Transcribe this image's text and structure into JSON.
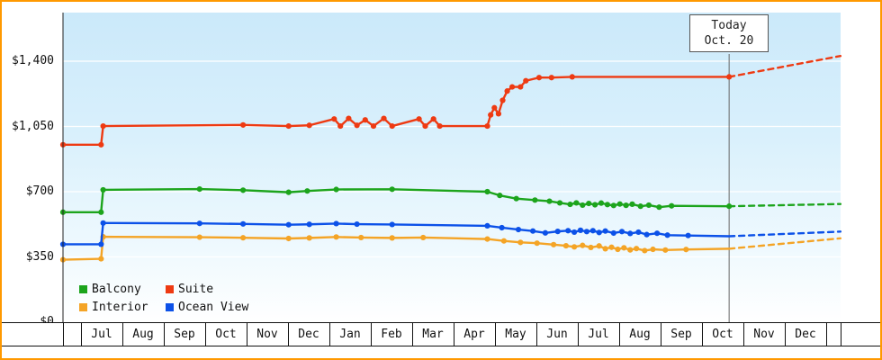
{
  "frame": {
    "border_color": "#ff9900",
    "background": "#ffffff"
  },
  "legend": [
    {
      "label": "Balcony",
      "color": "#1ca41c"
    },
    {
      "label": "Suite",
      "color": "#ee3a12"
    },
    {
      "label": "Interior",
      "color": "#f4a426"
    },
    {
      "label": "Ocean View",
      "color": "#0c51e8"
    }
  ],
  "chart_data": {
    "type": "line",
    "title": "",
    "xlabel": "",
    "ylabel": "",
    "grid": true,
    "legend_position": "bottom-left",
    "y_axis": {
      "max": 1400,
      "ticks": [
        {
          "label": "$0",
          "value": 0
        },
        {
          "label": "$350",
          "value": 350
        },
        {
          "label": "$700",
          "value": 700
        },
        {
          "label": "$1,050",
          "value": 1050
        },
        {
          "label": "$1,400",
          "value": 1400
        }
      ]
    },
    "x_axis": {
      "month_labels": [
        "Jul",
        "Aug",
        "Sep",
        "Oct",
        "Nov",
        "Dec",
        "Jan",
        "Feb",
        "Mar",
        "Apr",
        "May",
        "Jun",
        "Jul",
        "Aug",
        "Sep",
        "Oct",
        "Nov",
        "Dec"
      ]
    },
    "today": {
      "line1": "Today",
      "line2": "Oct. 20",
      "t": 16.09
    },
    "series": [
      {
        "name": "Balcony",
        "color": "#1ca41c",
        "points": [
          [
            0,
            590
          ],
          [
            0.92,
            590
          ],
          [
            0.97,
            710
          ],
          [
            3.3,
            714
          ],
          [
            4.35,
            708
          ],
          [
            5.45,
            697
          ],
          [
            5.9,
            704
          ],
          [
            6.6,
            712
          ],
          [
            7.95,
            713
          ],
          [
            10.25,
            700
          ],
          [
            10.55,
            680
          ],
          [
            10.95,
            663
          ],
          [
            11.4,
            655
          ],
          [
            11.75,
            649
          ],
          [
            12.0,
            640
          ],
          [
            12.25,
            632
          ],
          [
            12.4,
            640
          ],
          [
            12.55,
            628
          ],
          [
            12.7,
            637
          ],
          [
            12.85,
            630
          ],
          [
            13.0,
            639
          ],
          [
            13.15,
            631
          ],
          [
            13.3,
            626
          ],
          [
            13.45,
            634
          ],
          [
            13.6,
            627
          ],
          [
            13.75,
            633
          ],
          [
            13.95,
            622
          ],
          [
            14.15,
            628
          ],
          [
            14.4,
            617
          ],
          [
            14.7,
            624
          ],
          [
            16.09,
            622
          ]
        ],
        "forecast": [
          [
            16.09,
            622
          ],
          [
            18.78,
            634
          ]
        ]
      },
      {
        "name": "Suite",
        "color": "#ee3a12",
        "points": [
          [
            0,
            952
          ],
          [
            0.92,
            952
          ],
          [
            0.97,
            1052
          ],
          [
            4.35,
            1058
          ],
          [
            5.45,
            1052
          ],
          [
            5.95,
            1056
          ],
          [
            6.55,
            1090
          ],
          [
            6.7,
            1052
          ],
          [
            6.9,
            1093
          ],
          [
            7.1,
            1056
          ],
          [
            7.3,
            1085
          ],
          [
            7.5,
            1052
          ],
          [
            7.75,
            1093
          ],
          [
            7.95,
            1052
          ],
          [
            8.6,
            1090
          ],
          [
            8.75,
            1052
          ],
          [
            8.95,
            1090
          ],
          [
            9.1,
            1052
          ],
          [
            10.25,
            1052
          ],
          [
            10.33,
            1112
          ],
          [
            10.42,
            1150
          ],
          [
            10.52,
            1118
          ],
          [
            10.62,
            1190
          ],
          [
            10.73,
            1240
          ],
          [
            10.85,
            1262
          ],
          [
            11.05,
            1262
          ],
          [
            11.18,
            1295
          ],
          [
            11.5,
            1312
          ],
          [
            11.8,
            1312
          ],
          [
            12.3,
            1316
          ],
          [
            16.09,
            1316
          ]
        ],
        "forecast": [
          [
            16.09,
            1316
          ],
          [
            18.78,
            1428
          ]
        ]
      },
      {
        "name": "Interior",
        "color": "#f4a426",
        "points": [
          [
            0,
            335
          ],
          [
            0.92,
            340
          ],
          [
            0.97,
            458
          ],
          [
            3.3,
            456
          ],
          [
            4.35,
            453
          ],
          [
            5.45,
            449
          ],
          [
            5.95,
            452
          ],
          [
            6.6,
            457
          ],
          [
            7.2,
            454
          ],
          [
            7.95,
            452
          ],
          [
            8.7,
            454
          ],
          [
            10.25,
            446
          ],
          [
            10.65,
            436
          ],
          [
            11.05,
            428
          ],
          [
            11.45,
            424
          ],
          [
            11.85,
            416
          ],
          [
            12.15,
            410
          ],
          [
            12.35,
            404
          ],
          [
            12.55,
            412
          ],
          [
            12.75,
            401
          ],
          [
            12.95,
            409
          ],
          [
            13.1,
            394
          ],
          [
            13.25,
            402
          ],
          [
            13.4,
            391
          ],
          [
            13.55,
            399
          ],
          [
            13.7,
            388
          ],
          [
            13.85,
            395
          ],
          [
            14.05,
            384
          ],
          [
            14.25,
            391
          ],
          [
            14.55,
            387
          ],
          [
            15.05,
            390
          ],
          [
            16.09,
            394,
            0
          ]
        ],
        "forecast": [
          [
            16.09,
            394
          ],
          [
            18.78,
            450
          ]
        ]
      },
      {
        "name": "Ocean View",
        "color": "#0c51e8",
        "points": [
          [
            0,
            418
          ],
          [
            0.92,
            418
          ],
          [
            0.97,
            532
          ],
          [
            3.3,
            530
          ],
          [
            4.35,
            527
          ],
          [
            5.45,
            523
          ],
          [
            5.95,
            525
          ],
          [
            6.6,
            529
          ],
          [
            7.1,
            526
          ],
          [
            7.95,
            524
          ],
          [
            10.25,
            517
          ],
          [
            10.6,
            507
          ],
          [
            11.0,
            497
          ],
          [
            11.35,
            489
          ],
          [
            11.65,
            479
          ],
          [
            11.95,
            487
          ],
          [
            12.2,
            491
          ],
          [
            12.35,
            483
          ],
          [
            12.5,
            493
          ],
          [
            12.65,
            486
          ],
          [
            12.8,
            491
          ],
          [
            12.95,
            481
          ],
          [
            13.1,
            489
          ],
          [
            13.3,
            478
          ],
          [
            13.5,
            486
          ],
          [
            13.7,
            476
          ],
          [
            13.9,
            483
          ],
          [
            14.1,
            470
          ],
          [
            14.35,
            477
          ],
          [
            14.6,
            467
          ],
          [
            15.1,
            465
          ],
          [
            16.09,
            461,
            0
          ]
        ],
        "forecast": [
          [
            16.09,
            461
          ],
          [
            18.78,
            486
          ]
        ]
      }
    ]
  }
}
